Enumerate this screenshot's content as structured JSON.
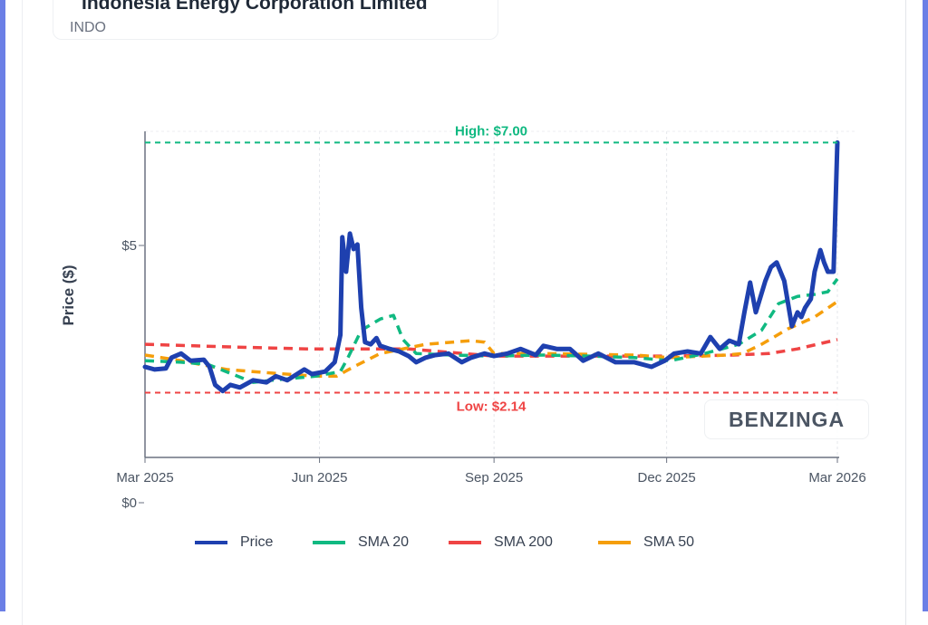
{
  "header": {
    "title": "Indonesia Energy Corporation Limited",
    "ticker": "INDO"
  },
  "watermark": "BENZINGA",
  "chart_data": {
    "type": "line",
    "ylabel": "Price ($)",
    "y_ticks": [
      {
        "value": 5,
        "label": "$5"
      },
      {
        "value": 0,
        "label": "$0"
      }
    ],
    "x_ticks": [
      {
        "date": "2025-03-01",
        "label": "Mar 2025"
      },
      {
        "date": "2025-06-01",
        "label": "Jun 2025"
      },
      {
        "date": "2025-09-01",
        "label": "Sep 2025"
      },
      {
        "date": "2025-12-01",
        "label": "Dec 2025"
      },
      {
        "date": "2026-03-01",
        "label": "Mar 2026"
      }
    ],
    "annotations": {
      "high": {
        "value": 7.0,
        "label": "High: $7.00",
        "color": "#10b981"
      },
      "low": {
        "value": 2.14,
        "label": "Low: $2.14",
        "color": "#ef4444"
      }
    },
    "legend_position": "bottom",
    "series": [
      {
        "name": "Price",
        "color": "#1e40af",
        "dashed": false,
        "points": [
          [
            "2025-03-01",
            2.64
          ],
          [
            "2025-03-06",
            2.59
          ],
          [
            "2025-03-12",
            2.61
          ],
          [
            "2025-03-15",
            2.82
          ],
          [
            "2025-03-20",
            2.9
          ],
          [
            "2025-03-25",
            2.76
          ],
          [
            "2025-04-01",
            2.78
          ],
          [
            "2025-04-04",
            2.64
          ],
          [
            "2025-04-07",
            2.29
          ],
          [
            "2025-04-11",
            2.17
          ],
          [
            "2025-04-15",
            2.29
          ],
          [
            "2025-04-20",
            2.24
          ],
          [
            "2025-04-27",
            2.38
          ],
          [
            "2025-05-04",
            2.34
          ],
          [
            "2025-05-09",
            2.46
          ],
          [
            "2025-05-15",
            2.38
          ],
          [
            "2025-05-24",
            2.59
          ],
          [
            "2025-05-28",
            2.5
          ],
          [
            "2025-06-04",
            2.55
          ],
          [
            "2025-06-09",
            2.73
          ],
          [
            "2025-06-12",
            3.26
          ],
          [
            "2025-06-13",
            5.16
          ],
          [
            "2025-06-15",
            4.49
          ],
          [
            "2025-06-17",
            5.23
          ],
          [
            "2025-06-19",
            4.93
          ],
          [
            "2025-06-21",
            5.02
          ],
          [
            "2025-06-23",
            3.79
          ],
          [
            "2025-06-25",
            3.12
          ],
          [
            "2025-06-28",
            3.08
          ],
          [
            "2025-07-01",
            3.2
          ],
          [
            "2025-07-03",
            3.05
          ],
          [
            "2025-07-08",
            2.99
          ],
          [
            "2025-07-13",
            2.94
          ],
          [
            "2025-07-18",
            2.85
          ],
          [
            "2025-07-22",
            2.73
          ],
          [
            "2025-07-27",
            2.82
          ],
          [
            "2025-08-01",
            2.87
          ],
          [
            "2025-08-08",
            2.9
          ],
          [
            "2025-08-15",
            2.73
          ],
          [
            "2025-08-20",
            2.82
          ],
          [
            "2025-08-27",
            2.9
          ],
          [
            "2025-09-01",
            2.85
          ],
          [
            "2025-09-08",
            2.9
          ],
          [
            "2025-09-15",
            2.99
          ],
          [
            "2025-09-23",
            2.87
          ],
          [
            "2025-09-27",
            3.05
          ],
          [
            "2025-10-04",
            2.99
          ],
          [
            "2025-10-11",
            2.99
          ],
          [
            "2025-10-18",
            2.76
          ],
          [
            "2025-10-26",
            2.9
          ],
          [
            "2025-11-04",
            2.73
          ],
          [
            "2025-11-14",
            2.73
          ],
          [
            "2025-11-23",
            2.64
          ],
          [
            "2025-11-30",
            2.76
          ],
          [
            "2025-12-05",
            2.9
          ],
          [
            "2025-12-12",
            2.94
          ],
          [
            "2025-12-19",
            2.9
          ],
          [
            "2025-12-24",
            3.22
          ],
          [
            "2025-12-29",
            2.99
          ],
          [
            "2026-01-03",
            3.15
          ],
          [
            "2026-01-08",
            3.08
          ],
          [
            "2026-01-11",
            3.7
          ],
          [
            "2026-01-14",
            4.28
          ],
          [
            "2026-01-17",
            3.7
          ],
          [
            "2026-01-22",
            4.31
          ],
          [
            "2026-01-25",
            4.58
          ],
          [
            "2026-01-28",
            4.67
          ],
          [
            "2026-02-01",
            4.31
          ],
          [
            "2026-02-03",
            3.87
          ],
          [
            "2026-02-05",
            3.43
          ],
          [
            "2026-02-08",
            3.7
          ],
          [
            "2026-02-10",
            3.61
          ],
          [
            "2026-02-12",
            3.79
          ],
          [
            "2026-02-15",
            3.96
          ],
          [
            "2026-02-17",
            4.49
          ],
          [
            "2026-02-20",
            4.91
          ],
          [
            "2026-02-22",
            4.67
          ],
          [
            "2026-02-24",
            4.49
          ],
          [
            "2026-02-27",
            4.49
          ],
          [
            "2026-03-01",
            7.0
          ]
        ]
      },
      {
        "name": "SMA 20",
        "color": "#10b981",
        "dashed": true,
        "points": [
          [
            "2025-03-01",
            2.76
          ],
          [
            "2025-03-20",
            2.73
          ],
          [
            "2025-04-03",
            2.69
          ],
          [
            "2025-04-27",
            2.34
          ],
          [
            "2025-05-07",
            2.38
          ],
          [
            "2025-05-30",
            2.46
          ],
          [
            "2025-06-12",
            2.55
          ],
          [
            "2025-06-16",
            2.82
          ],
          [
            "2025-06-23",
            3.35
          ],
          [
            "2025-07-03",
            3.57
          ],
          [
            "2025-07-10",
            3.64
          ],
          [
            "2025-07-15",
            3.17
          ],
          [
            "2025-07-22",
            2.9
          ],
          [
            "2025-08-10",
            2.87
          ],
          [
            "2025-09-01",
            2.85
          ],
          [
            "2025-09-27",
            2.87
          ],
          [
            "2025-10-21",
            2.85
          ],
          [
            "2025-11-14",
            2.82
          ],
          [
            "2025-12-03",
            2.76
          ],
          [
            "2025-12-21",
            2.9
          ],
          [
            "2026-01-08",
            3.08
          ],
          [
            "2026-01-20",
            3.35
          ],
          [
            "2026-01-29",
            3.87
          ],
          [
            "2026-02-08",
            4.01
          ],
          [
            "2026-02-17",
            4.05
          ],
          [
            "2026-02-24",
            4.1
          ],
          [
            "2026-03-01",
            4.35
          ]
        ]
      },
      {
        "name": "SMA 200",
        "color": "#ef4444",
        "dashed": true,
        "points": [
          [
            "2025-03-01",
            3.08
          ],
          [
            "2025-04-13",
            3.03
          ],
          [
            "2025-05-26",
            2.99
          ],
          [
            "2025-06-14",
            2.99
          ],
          [
            "2025-07-18",
            2.99
          ],
          [
            "2025-09-01",
            2.85
          ],
          [
            "2025-10-21",
            2.85
          ],
          [
            "2025-12-03",
            2.85
          ],
          [
            "2026-01-05",
            2.87
          ],
          [
            "2026-01-24",
            2.9
          ],
          [
            "2026-02-08",
            2.99
          ],
          [
            "2026-03-01",
            3.17
          ]
        ]
      },
      {
        "name": "SMA 50",
        "color": "#f59e0b",
        "dashed": true,
        "points": [
          [
            "2025-03-01",
            2.87
          ],
          [
            "2025-03-20",
            2.76
          ],
          [
            "2025-04-13",
            2.59
          ],
          [
            "2025-05-07",
            2.52
          ],
          [
            "2025-05-30",
            2.46
          ],
          [
            "2025-06-10",
            2.46
          ],
          [
            "2025-06-19",
            2.64
          ],
          [
            "2025-07-03",
            2.9
          ],
          [
            "2025-07-27",
            3.08
          ],
          [
            "2025-08-20",
            3.15
          ],
          [
            "2025-08-27",
            3.12
          ],
          [
            "2025-09-01",
            2.9
          ],
          [
            "2025-09-27",
            2.9
          ],
          [
            "2025-11-14",
            2.87
          ],
          [
            "2025-12-03",
            2.82
          ],
          [
            "2026-01-01",
            2.87
          ],
          [
            "2026-01-10",
            2.9
          ],
          [
            "2026-01-20",
            3.08
          ],
          [
            "2026-02-03",
            3.38
          ],
          [
            "2026-02-17",
            3.61
          ],
          [
            "2026-03-01",
            3.91
          ]
        ]
      }
    ]
  }
}
